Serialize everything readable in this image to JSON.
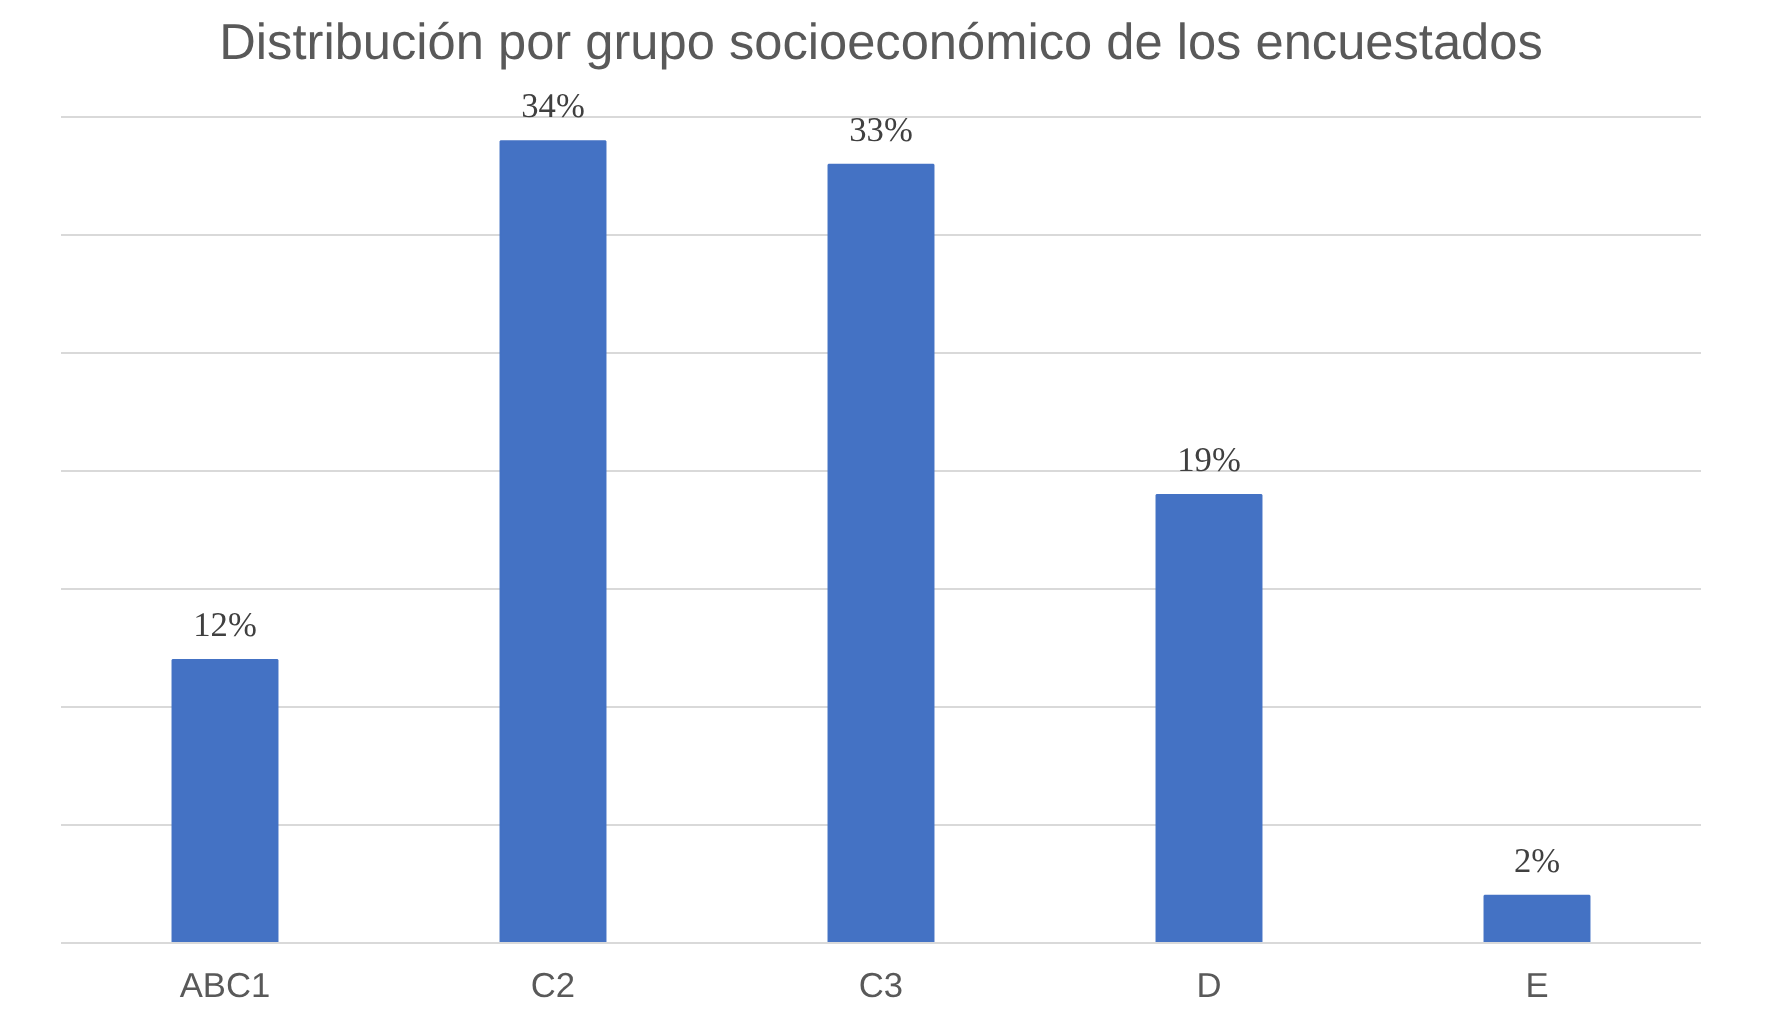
{
  "chart_data": {
    "type": "bar",
    "title": "Distribución por grupo socioeconómico de los encuestados",
    "categories": [
      "ABC1",
      "C2",
      "C3",
      "D",
      "E"
    ],
    "values": [
      12,
      34,
      33,
      19,
      2
    ],
    "value_labels": [
      "12%",
      "34%",
      "33%",
      "19%",
      "2%"
    ],
    "color": "#4472c4",
    "grid": "y",
    "tick_labels": "x"
  }
}
